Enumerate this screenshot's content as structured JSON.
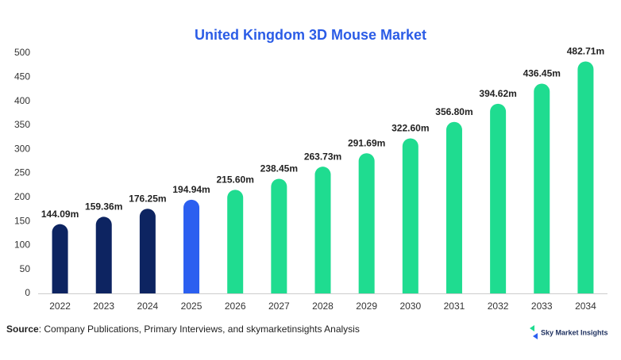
{
  "chart_data": {
    "type": "bar",
    "title": "United Kingdom 3D Mouse Market",
    "categories": [
      "2022",
      "2023",
      "2024",
      "2025",
      "2026",
      "2027",
      "2028",
      "2029",
      "2030",
      "2031",
      "2032",
      "2033",
      "2034"
    ],
    "values": [
      144.09,
      159.36,
      176.25,
      194.94,
      215.6,
      238.45,
      263.73,
      291.69,
      322.6,
      356.8,
      394.62,
      436.45,
      482.71
    ],
    "value_labels": [
      "144.09m",
      "159.36m",
      "176.25m",
      "194.94m",
      "215.60m",
      "238.45m",
      "263.73m",
      "291.69m",
      "322.60m",
      "356.80m",
      "394.62m",
      "436.45m",
      "482.71m"
    ],
    "colors": [
      "#0d2461",
      "#0d2461",
      "#0d2461",
      "#2b5ff0",
      "#1fdc90",
      "#1fdc90",
      "#1fdc90",
      "#1fdc90",
      "#1fdc90",
      "#1fdc90",
      "#1fdc90",
      "#1fdc90",
      "#1fdc90"
    ],
    "ylim": [
      0,
      500
    ],
    "yticks": [
      0,
      50,
      100,
      150,
      200,
      250,
      300,
      350,
      400,
      450,
      500
    ],
    "grid": false
  },
  "source_label": "Source",
  "source_text": ": Company Publications, Primary Interviews, and skymarketinsights Analysis",
  "logo": "Sky Market Insights"
}
